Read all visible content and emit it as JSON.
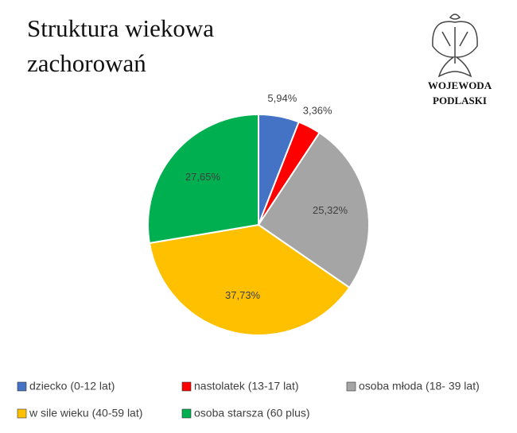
{
  "logo": {
    "text": "WOJEWODA PODLASKI"
  },
  "chart_data": {
    "type": "pie",
    "title": "Struktura wiekowa zachorowań",
    "categories": [
      "dziecko (0-12 lat)",
      "nastolatek (13-17 lat)",
      "osoba młoda (18- 39 lat)",
      "w sile wieku (40-59 lat)",
      "osoba starsza (60 plus)"
    ],
    "values": [
      5.94,
      3.36,
      25.32,
      37.73,
      27.65
    ],
    "value_labels": [
      "5,94%",
      "3,36%",
      "25,32%",
      "37,73%",
      "27,65%"
    ],
    "colors": [
      "#4472c4",
      "#ff0000",
      "#a5a5a5",
      "#ffc000",
      "#00b050"
    ],
    "legend": "bottom"
  }
}
